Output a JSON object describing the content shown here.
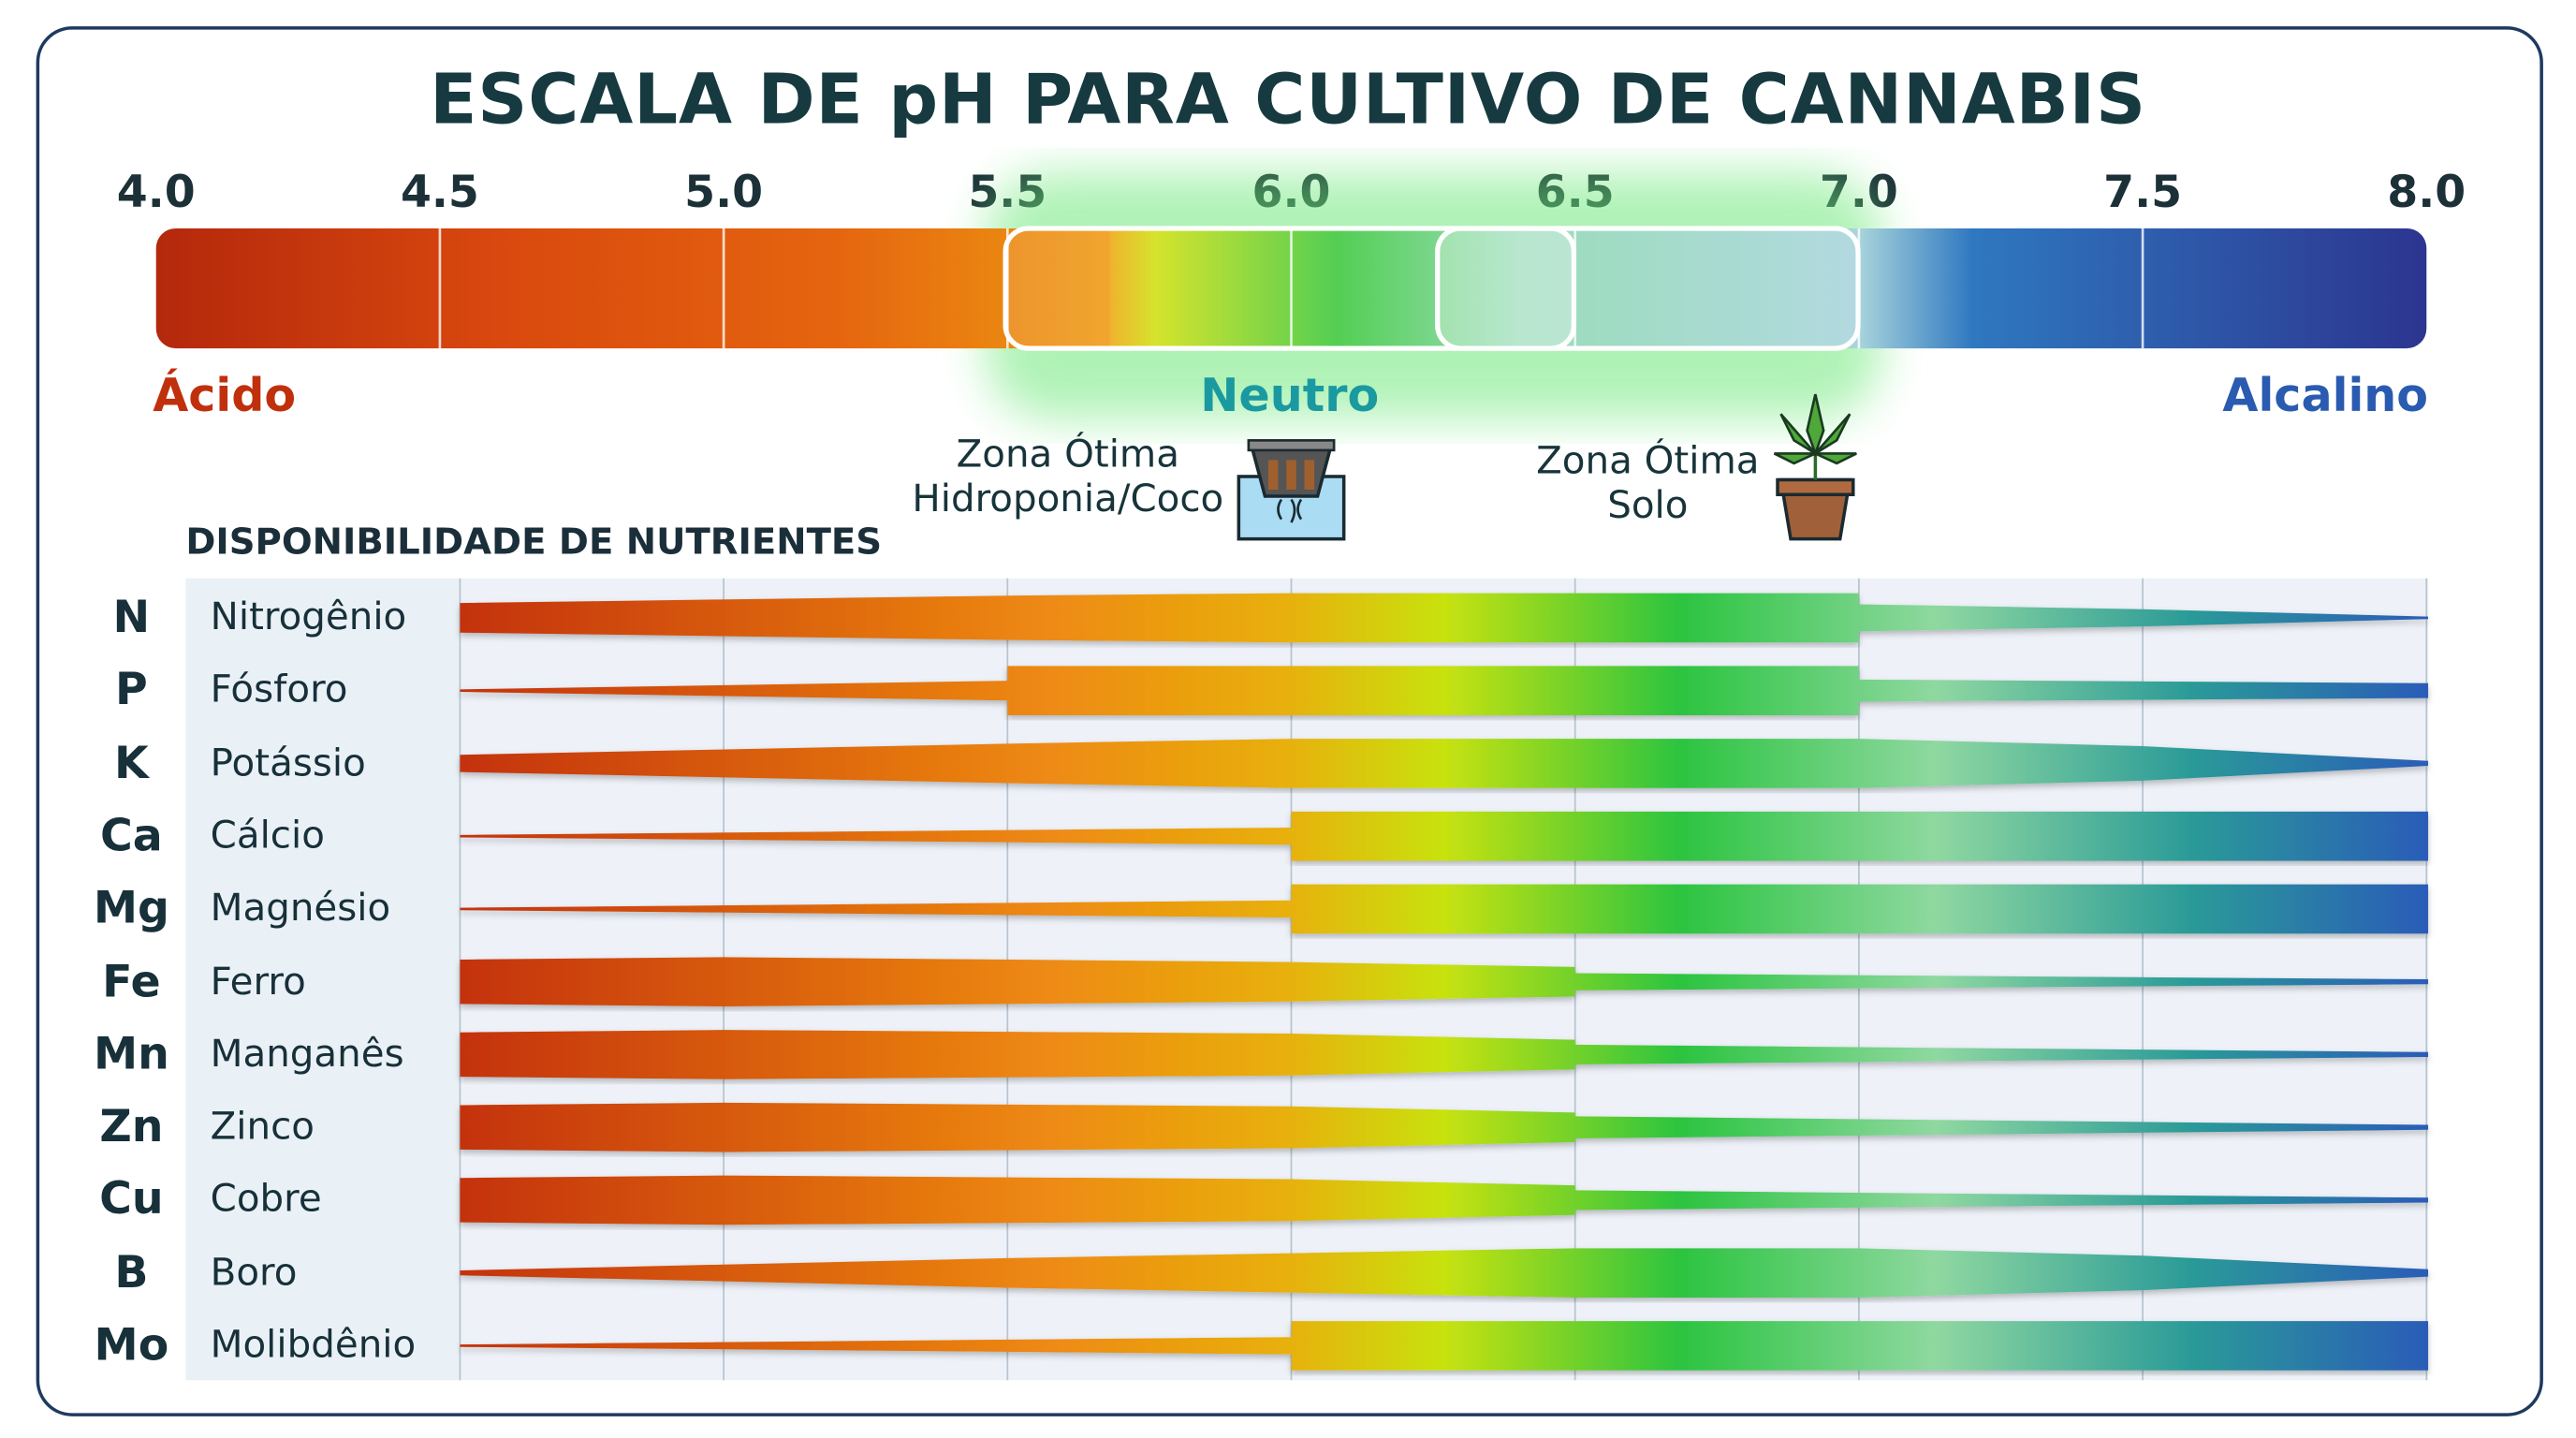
{
  "chart_data": {
    "type": "area",
    "title": "ESCALA DE pH PARA CULTIVO DE CANNABIS",
    "xlim": [
      4.0,
      8.0
    ],
    "ticks": [
      "4.0",
      "4.5",
      "5.0",
      "5.5",
      "6.0",
      "6.5",
      "7.0",
      "7.5",
      "8.0"
    ],
    "scale_labels": {
      "acid": "Ácido",
      "neutral": "Neutro",
      "alkaline": "Alcalino"
    },
    "colors": {
      "acid": "#c0300c",
      "neutral": "#1a9aa0",
      "alkaline": "#2a5bb0"
    },
    "zones": [
      {
        "label_line1": "Zona Ótima",
        "label_line2": "Hidroponia/Coco",
        "range": [
          5.5,
          6.5
        ],
        "icon": "hydroponic-net-pot-icon"
      },
      {
        "label_line1": "Zona Ótima",
        "label_line2": "Solo",
        "range": [
          6.0,
          7.0
        ],
        "icon": "potted-cannabis-plant-icon"
      }
    ],
    "section_title": "DISPONIBILIDADE DE NUTRIENTES",
    "nutrients": [
      {
        "symbol": "N",
        "name": "Nitrogênio",
        "profile": [
          [
            4.5,
            0.6
          ],
          [
            5.5,
            0.9
          ],
          [
            6.0,
            1
          ],
          [
            7.0,
            1
          ],
          [
            7.0,
            0.55
          ],
          [
            7.5,
            0.35
          ],
          [
            8.0,
            0.05
          ]
        ]
      },
      {
        "symbol": "P",
        "name": "Fósforo",
        "profile": [
          [
            4.5,
            0.05
          ],
          [
            5.5,
            0.4
          ],
          [
            5.5,
            1
          ],
          [
            7.0,
            1
          ],
          [
            7.0,
            0.45
          ],
          [
            8.0,
            0.3
          ]
        ]
      },
      {
        "symbol": "K",
        "name": "Potássio",
        "profile": [
          [
            4.5,
            0.35
          ],
          [
            5.5,
            0.8
          ],
          [
            6.0,
            1
          ],
          [
            7.0,
            1
          ],
          [
            7.5,
            0.7
          ],
          [
            8.0,
            0.1
          ]
        ]
      },
      {
        "symbol": "Ca",
        "name": "Cálcio",
        "profile": [
          [
            4.5,
            0.05
          ],
          [
            6.0,
            0.35
          ],
          [
            6.0,
            1
          ],
          [
            8.0,
            1
          ]
        ]
      },
      {
        "symbol": "Mg",
        "name": "Magnésio",
        "profile": [
          [
            4.5,
            0.05
          ],
          [
            6.0,
            0.35
          ],
          [
            6.0,
            1
          ],
          [
            8.0,
            1
          ]
        ]
      },
      {
        "symbol": "Fe",
        "name": "Ferro",
        "profile": [
          [
            4.5,
            0.9
          ],
          [
            5.0,
            1
          ],
          [
            6.0,
            0.8
          ],
          [
            6.5,
            0.6
          ],
          [
            6.5,
            0.35
          ],
          [
            8.0,
            0.1
          ]
        ]
      },
      {
        "symbol": "Mn",
        "name": "Manganês",
        "profile": [
          [
            4.5,
            0.9
          ],
          [
            5.0,
            1
          ],
          [
            6.0,
            0.85
          ],
          [
            6.5,
            0.6
          ],
          [
            6.5,
            0.4
          ],
          [
            8.0,
            0.1
          ]
        ]
      },
      {
        "symbol": "Zn",
        "name": "Zinco",
        "profile": [
          [
            4.5,
            0.9
          ],
          [
            5.0,
            1
          ],
          [
            6.0,
            0.85
          ],
          [
            6.5,
            0.6
          ],
          [
            6.5,
            0.45
          ],
          [
            8.0,
            0.1
          ]
        ]
      },
      {
        "symbol": "Cu",
        "name": "Cobre",
        "profile": [
          [
            4.5,
            0.9
          ],
          [
            5.0,
            1
          ],
          [
            6.0,
            0.85
          ],
          [
            6.5,
            0.6
          ],
          [
            6.5,
            0.4
          ],
          [
            8.0,
            0.1
          ]
        ]
      },
      {
        "symbol": "B",
        "name": "Boro",
        "profile": [
          [
            4.5,
            0.1
          ],
          [
            5.5,
            0.6
          ],
          [
            6.5,
            1
          ],
          [
            7.0,
            1
          ],
          [
            7.5,
            0.7
          ],
          [
            8.0,
            0.15
          ]
        ]
      },
      {
        "symbol": "Mo",
        "name": "Molibdênio",
        "profile": [
          [
            4.5,
            0.05
          ],
          [
            6.0,
            0.35
          ],
          [
            6.0,
            1
          ],
          [
            8.0,
            1
          ]
        ]
      }
    ]
  }
}
